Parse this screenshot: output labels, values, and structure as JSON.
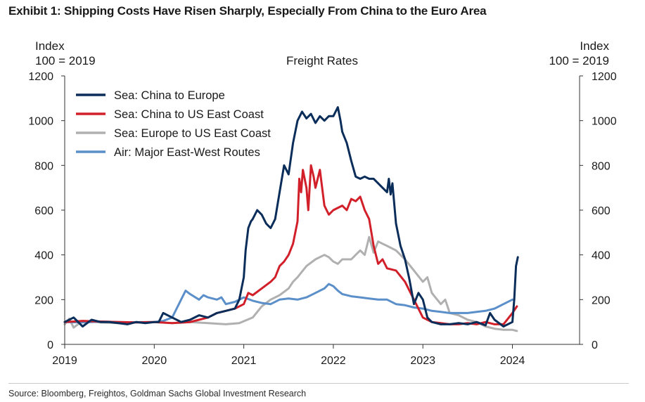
{
  "exhibit": {
    "title": "Exhibit 1: Shipping Costs Have Risen Sharply, Especially From China to the Euro Area",
    "source": "Source: Bloomberg, Freightos, Goldman Sachs Global Investment Research"
  },
  "chart_data": {
    "type": "line",
    "title": "Freight Rates",
    "ylabel_left": [
      "Index",
      "100 = 2019"
    ],
    "ylabel_right": [
      "Index",
      "100 = 2019"
    ],
    "xlim": [
      2019,
      2024.75
    ],
    "ylim": [
      0,
      1200
    ],
    "xticks": [
      2019,
      2020,
      2021,
      2022,
      2023,
      2024
    ],
    "yticks": [
      0,
      200,
      400,
      600,
      800,
      1000,
      1200
    ],
    "grid": false,
    "legend": "top-left",
    "series": [
      {
        "name": "Sea: Europe to US East Coast",
        "color": "#b0b0b0",
        "x": [
          2019.0,
          2019.05,
          2019.1,
          2019.2,
          2019.4,
          2019.6,
          2019.8,
          2020.0,
          2020.2,
          2020.4,
          2020.6,
          2020.8,
          2020.95,
          2021.1,
          2021.2,
          2021.3,
          2021.4,
          2021.5,
          2021.55,
          2021.6,
          2021.7,
          2021.8,
          2021.9,
          2021.95,
          2022.0,
          2022.05,
          2022.1,
          2022.2,
          2022.3,
          2022.35,
          2022.4,
          2022.45,
          2022.5,
          2022.55,
          2022.6,
          2022.7,
          2022.8,
          2022.9,
          2023.0,
          2023.05,
          2023.1,
          2023.2,
          2023.25,
          2023.3,
          2023.4,
          2023.5,
          2023.6,
          2023.7,
          2023.8,
          2023.9,
          2024.0,
          2024.05
        ],
        "y": [
          90,
          115,
          75,
          105,
          98,
          95,
          100,
          100,
          95,
          100,
          95,
          90,
          95,
          120,
          170,
          200,
          220,
          250,
          280,
          300,
          350,
          380,
          400,
          390,
          370,
          360,
          380,
          380,
          420,
          400,
          480,
          410,
          460,
          450,
          440,
          420,
          380,
          330,
          280,
          300,
          230,
          180,
          200,
          140,
          130,
          110,
          100,
          80,
          70,
          65,
          65,
          60
        ]
      },
      {
        "name": "Air: Major East-West Routes",
        "color": "#5b8fc9",
        "x": [
          2019.0,
          2019.2,
          2019.4,
          2019.6,
          2019.8,
          2020.0,
          2020.1,
          2020.2,
          2020.3,
          2020.35,
          2020.4,
          2020.5,
          2020.55,
          2020.6,
          2020.7,
          2020.75,
          2020.8,
          2020.9,
          2021.0,
          2021.1,
          2021.2,
          2021.3,
          2021.4,
          2021.5,
          2021.6,
          2021.7,
          2021.8,
          2021.9,
          2021.95,
          2022.0,
          2022.05,
          2022.1,
          2022.2,
          2022.3,
          2022.4,
          2022.5,
          2022.6,
          2022.7,
          2022.8,
          2022.9,
          2023.0,
          2023.1,
          2023.2,
          2023.3,
          2023.4,
          2023.5,
          2023.6,
          2023.7,
          2023.8,
          2023.9,
          2024.0
        ],
        "y": [
          100,
          98,
          102,
          100,
          98,
          100,
          105,
          120,
          200,
          240,
          225,
          200,
          220,
          210,
          200,
          210,
          180,
          190,
          210,
          195,
          185,
          180,
          200,
          205,
          200,
          210,
          230,
          250,
          270,
          260,
          240,
          225,
          215,
          210,
          205,
          200,
          200,
          180,
          175,
          165,
          160,
          150,
          145,
          140,
          140,
          140,
          145,
          150,
          160,
          180,
          200
        ]
      },
      {
        "name": "Sea: China to US East Coast",
        "color": "#d2202a",
        "x": [
          2019.0,
          2019.2,
          2019.4,
          2019.6,
          2019.8,
          2020.0,
          2020.2,
          2020.4,
          2020.5,
          2020.6,
          2020.7,
          2020.8,
          2020.9,
          2021.0,
          2021.05,
          2021.1,
          2021.2,
          2021.3,
          2021.35,
          2021.4,
          2021.45,
          2021.5,
          2021.55,
          2021.6,
          2021.62,
          2021.64,
          2021.66,
          2021.7,
          2021.72,
          2021.75,
          2021.78,
          2021.8,
          2021.85,
          2021.9,
          2021.95,
          2022.0,
          2022.1,
          2022.15,
          2022.2,
          2022.25,
          2022.3,
          2022.35,
          2022.4,
          2022.45,
          2022.5,
          2022.55,
          2022.6,
          2022.7,
          2022.8,
          2022.9,
          2023.0,
          2023.1,
          2023.2,
          2023.3,
          2023.4,
          2023.5,
          2023.6,
          2023.7,
          2023.8,
          2023.9,
          2024.0,
          2024.05
        ],
        "y": [
          100,
          105,
          102,
          100,
          98,
          100,
          95,
          100,
          110,
          120,
          140,
          150,
          160,
          180,
          230,
          220,
          250,
          280,
          300,
          350,
          370,
          400,
          450,
          550,
          740,
          680,
          780,
          700,
          600,
          800,
          750,
          700,
          780,
          620,
          580,
          600,
          620,
          600,
          650,
          640,
          660,
          600,
          560,
          440,
          360,
          380,
          340,
          330,
          280,
          200,
          120,
          100,
          95,
          90,
          90,
          95,
          90,
          100,
          90,
          90,
          140,
          170
        ]
      },
      {
        "name": "Sea: China to Europe",
        "color": "#0b2d5a",
        "x": [
          2019.0,
          2019.1,
          2019.2,
          2019.3,
          2019.4,
          2019.5,
          2019.6,
          2019.7,
          2019.8,
          2019.9,
          2020.0,
          2020.05,
          2020.1,
          2020.2,
          2020.3,
          2020.4,
          2020.5,
          2020.6,
          2020.7,
          2020.8,
          2020.9,
          2020.95,
          2021.0,
          2021.02,
          2021.05,
          2021.08,
          2021.1,
          2021.15,
          2021.2,
          2021.25,
          2021.3,
          2021.35,
          2021.4,
          2021.45,
          2021.5,
          2021.55,
          2021.6,
          2021.65,
          2021.7,
          2021.75,
          2021.8,
          2021.85,
          2021.9,
          2021.95,
          2022.0,
          2022.05,
          2022.08,
          2022.1,
          2022.15,
          2022.2,
          2022.25,
          2022.3,
          2022.35,
          2022.4,
          2022.45,
          2022.5,
          2022.55,
          2022.6,
          2022.62,
          2022.64,
          2022.66,
          2022.7,
          2022.75,
          2022.8,
          2022.85,
          2022.9,
          2022.95,
          2023.0,
          2023.05,
          2023.1,
          2023.15,
          2023.2,
          2023.3,
          2023.4,
          2023.5,
          2023.6,
          2023.7,
          2023.75,
          2023.8,
          2023.9,
          2024.0,
          2024.02,
          2024.04,
          2024.06
        ],
        "y": [
          100,
          120,
          80,
          110,
          100,
          100,
          95,
          90,
          100,
          95,
          100,
          100,
          140,
          120,
          100,
          110,
          130,
          120,
          140,
          150,
          160,
          200,
          300,
          420,
          520,
          550,
          560,
          600,
          580,
          540,
          520,
          560,
          680,
          800,
          760,
          900,
          1000,
          1040,
          1010,
          1030,
          990,
          1020,
          1000,
          1020,
          1020,
          1060,
          1000,
          950,
          900,
          820,
          750,
          740,
          750,
          740,
          740,
          720,
          700,
          680,
          740,
          670,
          720,
          540,
          440,
          380,
          290,
          180,
          230,
          200,
          120,
          100,
          95,
          90,
          90,
          95,
          90,
          100,
          85,
          140,
          110,
          80,
          100,
          200,
          350,
          390
        ]
      }
    ]
  }
}
